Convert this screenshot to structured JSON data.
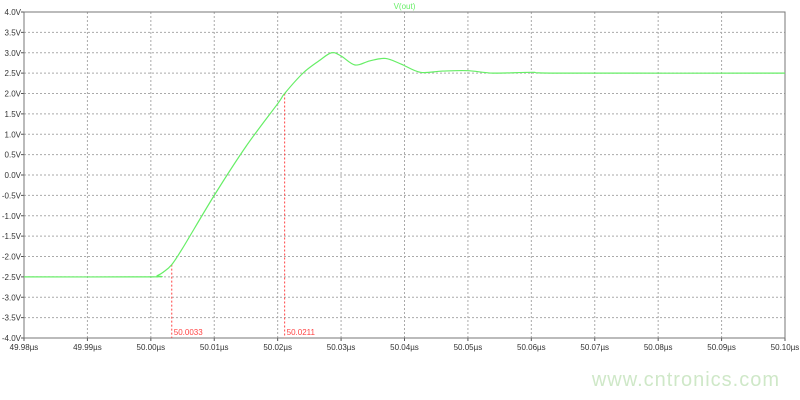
{
  "chart_data": {
    "type": "line",
    "legend": "top-center",
    "grid": true,
    "xlim": [
      49.98,
      50.1
    ],
    "ylim": [
      -4.0,
      4.0
    ],
    "x_ticks": [
      "49.98µs",
      "49.99µs",
      "50.00µs",
      "50.01µs",
      "50.02µs",
      "50.03µs",
      "50.04µs",
      "50.05µs",
      "50.06µs",
      "50.07µs",
      "50.08µs",
      "50.09µs",
      "50.10µs"
    ],
    "y_ticks": [
      "4.0V",
      "3.5V",
      "3.0V",
      "2.5V",
      "2.0V",
      "1.5V",
      "1.0V",
      "0.5V",
      "0.0V",
      "-0.5V",
      "-1.0V",
      "-1.5V",
      "-2.0V",
      "-2.5V",
      "-3.0V",
      "-3.5V",
      "-4.0V"
    ],
    "series": [
      {
        "name": "V(out)",
        "color": "#66ee66",
        "x": [
          49.98,
          50.0,
          50.001,
          50.002,
          50.0033,
          50.005,
          50.01,
          50.015,
          50.02,
          50.0211,
          50.024,
          50.0265,
          50.0285,
          50.03,
          50.0322,
          50.0345,
          50.037,
          50.0395,
          50.0425,
          50.046,
          50.05,
          50.054,
          50.06,
          50.065,
          50.1
        ],
        "y": [
          -2.5,
          -2.5,
          -2.47,
          -2.38,
          -2.2,
          -1.8,
          -0.5,
          0.7,
          1.75,
          2.0,
          2.5,
          2.8,
          3.0,
          2.92,
          2.7,
          2.8,
          2.86,
          2.72,
          2.52,
          2.55,
          2.56,
          2.5,
          2.52,
          2.5,
          2.5
        ]
      }
    ],
    "cursors": [
      {
        "x": 50.0033,
        "y": -2.2,
        "label": "50.0033"
      },
      {
        "x": 50.0211,
        "y": 2.0,
        "label": "50.0211"
      }
    ],
    "cursor_color": "#ff4444"
  },
  "watermark": "www.cntronics.com"
}
